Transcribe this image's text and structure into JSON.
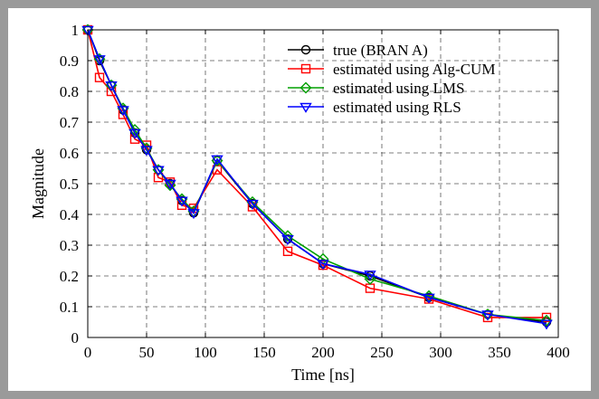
{
  "chart_data": {
    "type": "line",
    "title": "",
    "xlabel": "Time [ns]",
    "ylabel": "Magnitude",
    "xlim": [
      0,
      400
    ],
    "ylim": [
      0,
      1
    ],
    "xticks": [
      "0",
      "50",
      "100",
      "150",
      "200",
      "250",
      "300",
      "350",
      "400"
    ],
    "yticks": [
      "0",
      "0.1",
      "0.2",
      "0.3",
      "0.4",
      "0.5",
      "0.6",
      "0.7",
      "0.8",
      "0.9",
      "1"
    ],
    "grid": true,
    "legend_position": "top-right",
    "series": [
      {
        "name": "true (BRAN A)",
        "color": "#000000",
        "marker": "circle",
        "x": [
          0,
          10,
          20,
          30,
          40,
          50,
          60,
          70,
          80,
          90,
          110,
          140,
          170,
          200,
          240,
          290,
          340,
          390
        ],
        "y": [
          1.0,
          0.9,
          0.82,
          0.74,
          0.665,
          0.61,
          0.545,
          0.5,
          0.445,
          0.405,
          0.575,
          0.435,
          0.32,
          0.24,
          0.2,
          0.13,
          0.075,
          0.05
        ]
      },
      {
        "name": "estimated using Alg-CUM",
        "color": "#ff0000",
        "marker": "square",
        "x": [
          0,
          10,
          20,
          30,
          40,
          50,
          60,
          70,
          80,
          90,
          110,
          140,
          170,
          200,
          240,
          290,
          340,
          390
        ],
        "y": [
          1.0,
          0.845,
          0.8,
          0.725,
          0.645,
          0.625,
          0.52,
          0.505,
          0.43,
          0.42,
          0.545,
          0.425,
          0.28,
          0.235,
          0.16,
          0.125,
          0.065,
          0.065
        ]
      },
      {
        "name": "estimated using LMS",
        "color": "#00a000",
        "marker": "diamond",
        "x": [
          0,
          10,
          20,
          30,
          40,
          50,
          60,
          70,
          80,
          90,
          110,
          140,
          170,
          200,
          240,
          290,
          340,
          390
        ],
        "y": [
          1.0,
          0.905,
          0.82,
          0.745,
          0.675,
          0.615,
          0.545,
          0.495,
          0.45,
          0.41,
          0.575,
          0.44,
          0.33,
          0.255,
          0.19,
          0.135,
          0.075,
          0.055
        ]
      },
      {
        "name": "estimated using RLS",
        "color": "#0000ff",
        "marker": "triangle-down",
        "x": [
          0,
          10,
          20,
          30,
          40,
          50,
          60,
          70,
          80,
          90,
          110,
          140,
          170,
          200,
          240,
          290,
          340,
          390
        ],
        "y": [
          1.0,
          0.905,
          0.82,
          0.74,
          0.665,
          0.61,
          0.545,
          0.5,
          0.445,
          0.405,
          0.58,
          0.435,
          0.32,
          0.24,
          0.205,
          0.13,
          0.075,
          0.045
        ]
      }
    ]
  }
}
